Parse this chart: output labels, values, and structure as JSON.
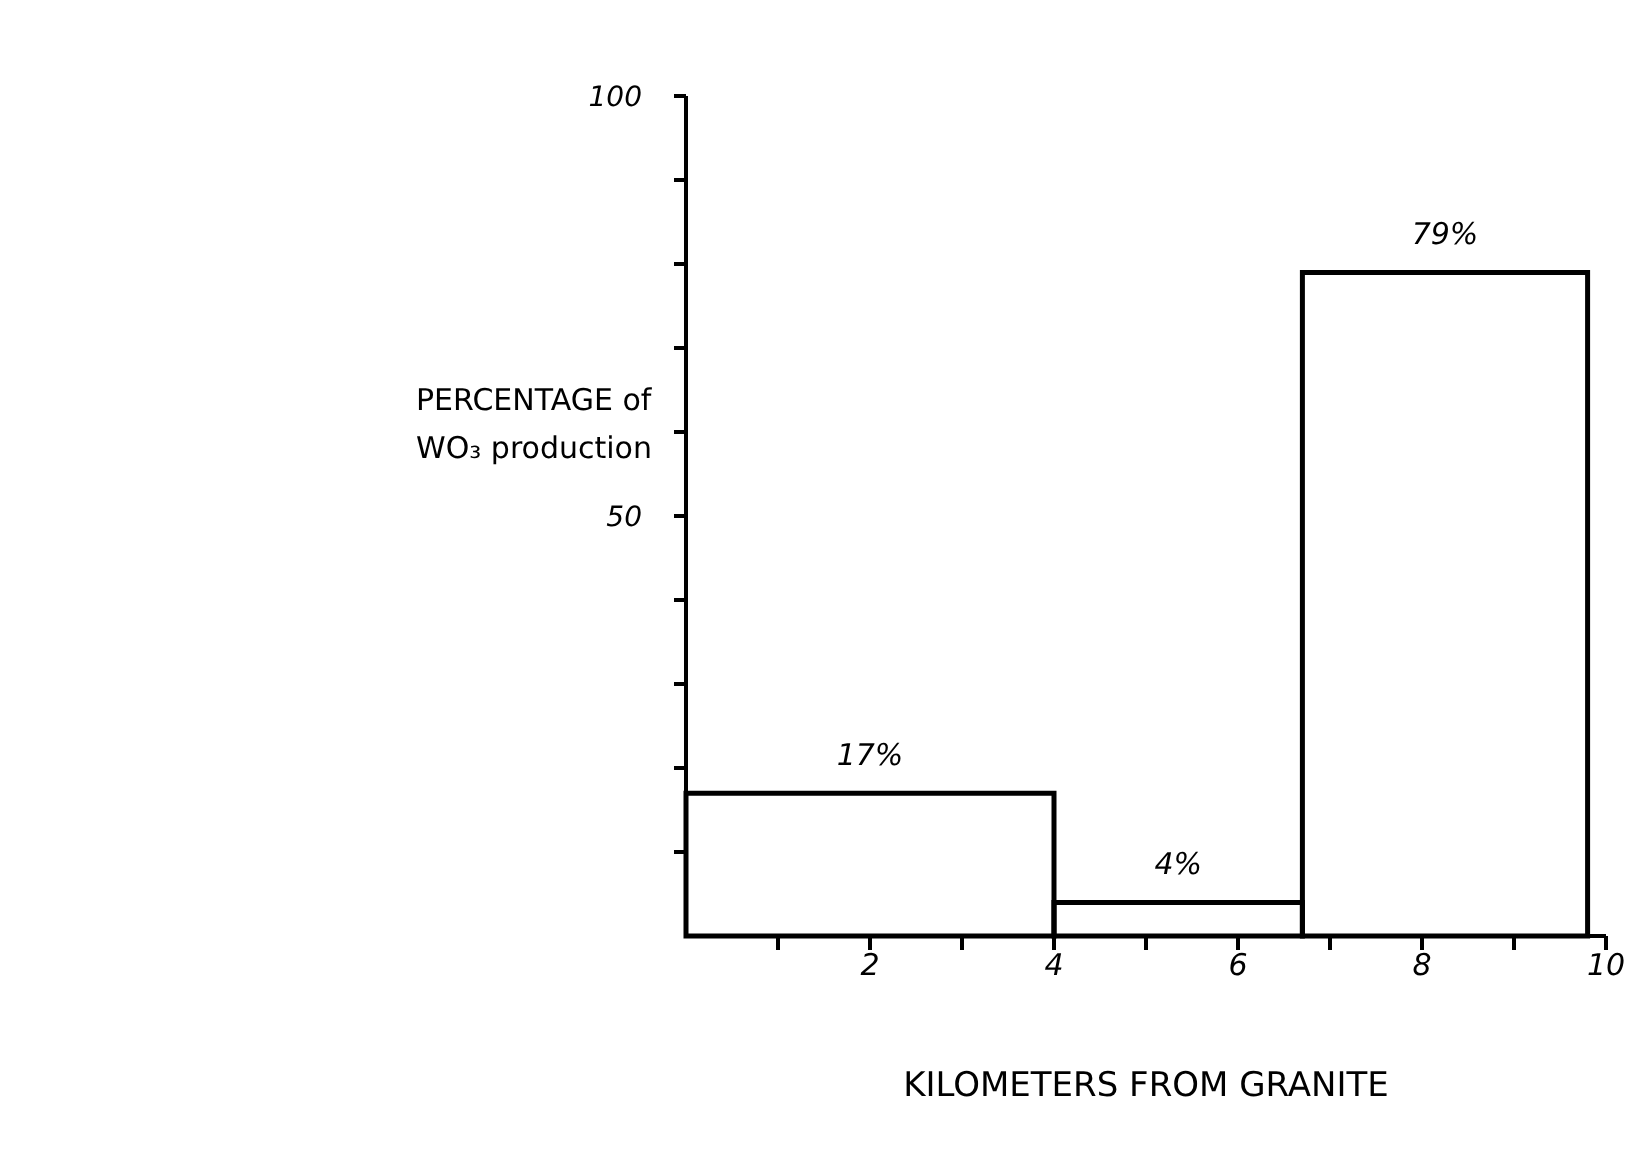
{
  "chart_data": {
    "type": "histogram",
    "xlabel": "KILOMETERS FROM GRANITE",
    "ylabel": "PERCENTAGE of WO₃ production",
    "bins": [
      0,
      4,
      6.7,
      9.8
    ],
    "values": [
      17,
      4,
      79
    ],
    "value_labels": [
      "17%",
      "4%",
      "79%"
    ],
    "color": "#000000",
    "xlim": [
      0,
      10
    ],
    "xticks": [
      {
        "value": 1,
        "label": null
      },
      2,
      {
        "value": 3,
        "label": null
      },
      4,
      {
        "value": 5,
        "label": null
      },
      6,
      {
        "value": 7,
        "label": null
      },
      8,
      {
        "value": 9,
        "label": null
      },
      10
    ],
    "ylim": [
      0,
      100
    ],
    "yticks": [
      {
        "value": 10,
        "label": null
      },
      {
        "value": 20,
        "label": null
      },
      {
        "value": 30,
        "label": null
      },
      {
        "value": 40,
        "label": null
      },
      50,
      {
        "value": 60,
        "label": null
      },
      {
        "value": 70,
        "label": null
      },
      {
        "value": 80,
        "label": null
      },
      {
        "value": 90,
        "label": null
      },
      100
    ],
    "grid": false
  }
}
